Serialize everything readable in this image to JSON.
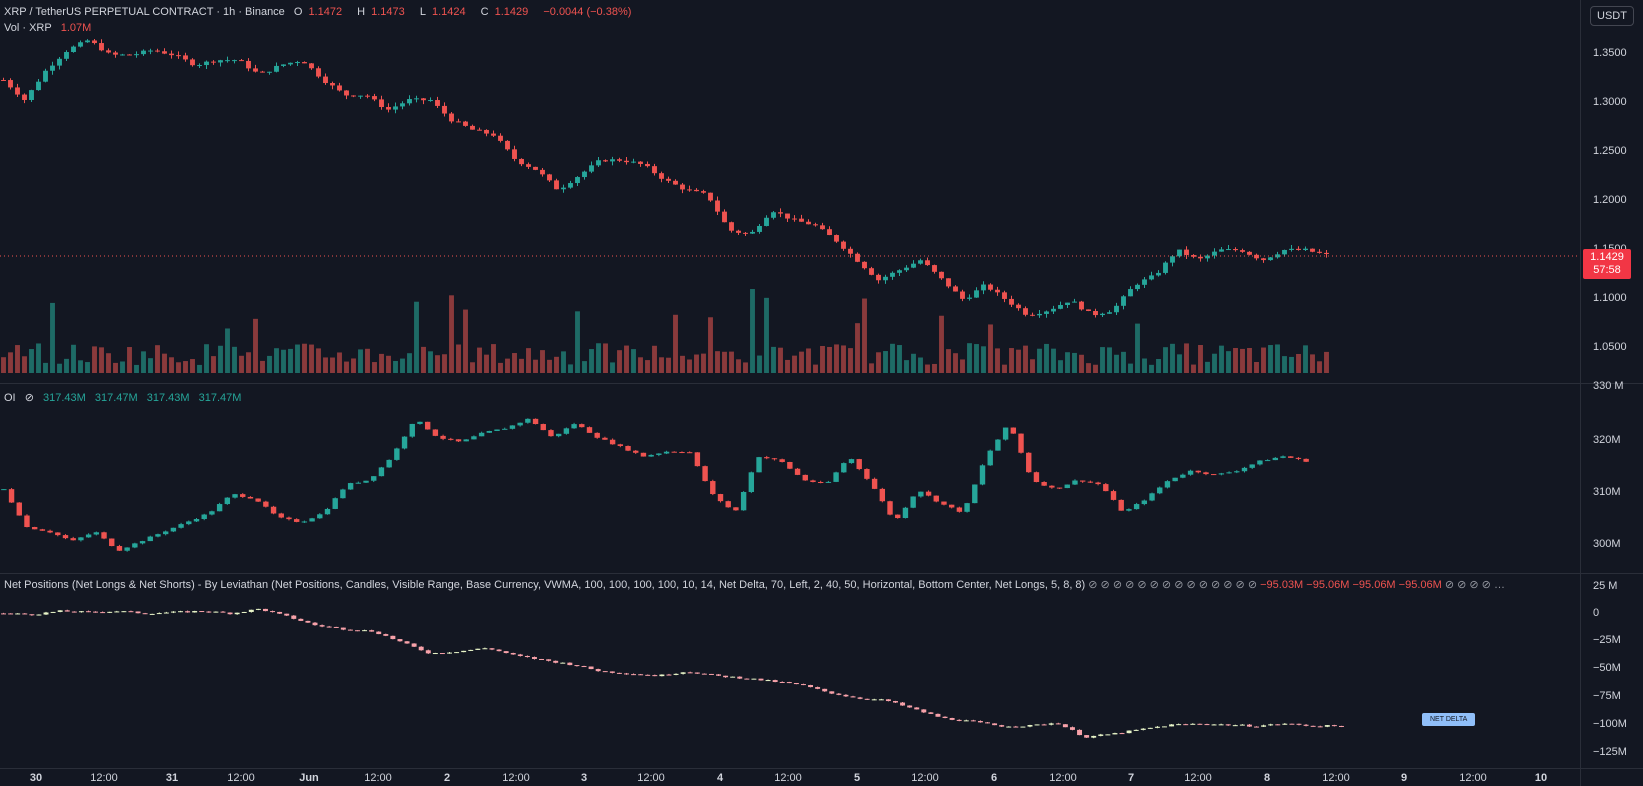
{
  "header": {
    "symbol": "XRP / TetherUS PERPETUAL CONTRACT · 1h · Binance",
    "o_label": "O",
    "o": "1.1472",
    "h_label": "H",
    "h": "1.1473",
    "l_label": "L",
    "l": "1.1424",
    "c_label": "C",
    "c": "1.1429",
    "change": "−0.0044 (−0.38%)",
    "vol_label": "Vol · XRP",
    "vol": "1.07M"
  },
  "currency_button": "USDT",
  "price_label": {
    "price": "1.1429",
    "countdown": "57:58"
  },
  "oi_legend": {
    "name": "OI",
    "values": [
      "317.43M",
      "317.47M",
      "317.43M",
      "317.47M"
    ]
  },
  "np_legend": {
    "text": "Net Positions (Net Longs & Net Shorts) - By Leviathan (Net Positions, Candles, Visible Range, Base Currency, VWMA, 100, 100, 100, 100, 10, 14, Net Delta, 70, Left, 2, 40, 50, Horizontal, Bottom Center, Net Longs, 5, 8, 8)",
    "values": [
      "−95.03M",
      "−95.06M",
      "−95.06M",
      "−95.06M"
    ]
  },
  "net_delta_label": "NET DELTA",
  "price_axis": [
    "1.3500",
    "1.3000",
    "1.2500",
    "1.2000",
    "1.1500",
    "1.1000",
    "1.0500"
  ],
  "oi_axis": [
    "330 M",
    "320M",
    "310M",
    "300M"
  ],
  "np_axis": [
    "25 M",
    "0",
    "−25M",
    "−50M",
    "−75M",
    "−100M",
    "−125M"
  ],
  "time_axis": [
    "30",
    "12:00",
    "31",
    "12:00",
    "Jun",
    "12:00",
    "2",
    "12:00",
    "3",
    "12:00",
    "4",
    "12:00",
    "5",
    "12:00",
    "6",
    "12:00",
    "7",
    "12:00",
    "8",
    "12:00",
    "9",
    "12:00",
    "10"
  ],
  "colors": {
    "up": "#26a69a",
    "down": "#ef5350",
    "bg": "#131722",
    "grid": "#2a2e39",
    "np_up": "#e8f5c8",
    "np_down": "#f7a1a9"
  },
  "chart_data": [
    {
      "type": "candlestick",
      "title": "XRP / TetherUS PERPETUAL CONTRACT · 1h · Binance",
      "ylim": [
        1.03,
        1.37
      ],
      "close_path": [
        1.32,
        1.3,
        1.33,
        1.35,
        1.36,
        1.345,
        1.345,
        1.35,
        1.345,
        1.335,
        1.34,
        1.34,
        1.325,
        1.335,
        1.34,
        1.32,
        1.305,
        1.305,
        1.29,
        1.3,
        1.3,
        1.28,
        1.27,
        1.265,
        1.24,
        1.23,
        1.21,
        1.225,
        1.24,
        1.24,
        1.235,
        1.22,
        1.21,
        1.205,
        1.17,
        1.165,
        1.19,
        1.18,
        1.175,
        1.16,
        1.14,
        1.12,
        1.13,
        1.14,
        1.12,
        1.1,
        1.115,
        1.1,
        1.085,
        1.09,
        1.1,
        1.085,
        1.09,
        1.115,
        1.125,
        1.15,
        1.14,
        1.15,
        1.15,
        1.14,
        1.15,
        1.15,
        1.145
      ]
    },
    {
      "type": "bar",
      "title": "Vol · XRP",
      "series": [
        {
          "name": "Vol",
          "values": []
        }
      ]
    },
    {
      "type": "candlestick",
      "title": "OI",
      "ylim": [
        296,
        331
      ],
      "close_path": [
        311,
        303,
        302,
        300,
        302,
        298,
        300,
        302,
        304,
        306,
        310,
        309,
        305,
        304,
        306,
        312,
        313,
        318,
        326,
        322,
        321,
        323,
        324,
        326,
        322,
        325,
        322,
        320,
        318,
        319,
        319,
        310,
        306,
        318,
        317,
        313,
        312,
        318,
        312,
        304,
        311,
        308,
        306,
        318,
        325,
        313,
        311,
        313,
        312,
        306,
        309,
        313,
        315,
        314,
        315,
        317,
        318,
        317
      ]
    },
    {
      "type": "candlestick",
      "title": "Net Positions",
      "ylim": [
        -130,
        27
      ],
      "close_path": [
        6,
        5,
        8,
        7,
        8,
        6,
        7,
        8,
        6,
        10,
        3,
        -5,
        -8,
        -10,
        -20,
        -30,
        -28,
        -25,
        -32,
        -36,
        -40,
        -46,
        -48,
        -50,
        -46,
        -50,
        -52,
        -55,
        -58,
        -65,
        -70,
        -72,
        -80,
        -88,
        -91,
        -95,
        -95,
        -92,
        -105,
        -102,
        -98,
        -94,
        -93,
        -94,
        -95,
        -93,
        -95,
        -95
      ]
    }
  ]
}
